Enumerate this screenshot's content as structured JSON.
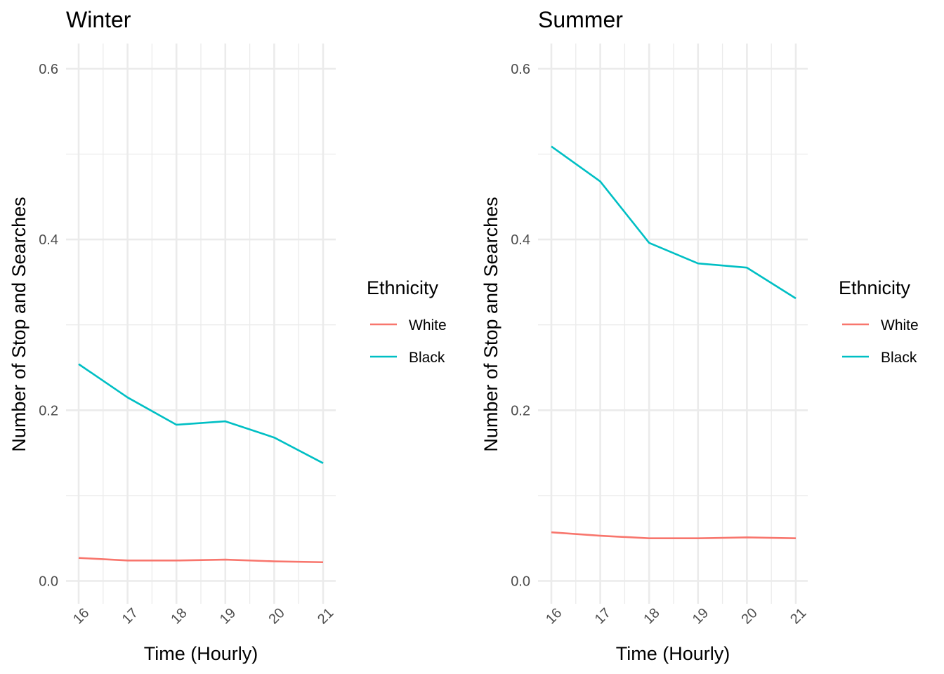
{
  "colors": {
    "White": "#F8766D",
    "Black": "#00BFC4"
  },
  "chart_data": [
    {
      "type": "line",
      "title": "Winter",
      "xlabel": "Time (Hourly)",
      "ylabel": "Number of Stop and Searches",
      "x": [
        16,
        17,
        18,
        19,
        20,
        21
      ],
      "xticks": [
        "16",
        "17",
        "18",
        "19",
        "20",
        "21"
      ],
      "yticks": [
        "0.0",
        "0.2",
        "0.4",
        "0.6"
      ],
      "ylim": [
        -0.03,
        0.63
      ],
      "grid": true,
      "legend": {
        "title": "Ethnicity",
        "position": "right"
      },
      "series": [
        {
          "name": "White",
          "values": [
            0.027,
            0.024,
            0.024,
            0.025,
            0.023,
            0.022
          ]
        },
        {
          "name": "Black",
          "values": [
            0.254,
            0.215,
            0.183,
            0.187,
            0.168,
            0.138
          ]
        }
      ]
    },
    {
      "type": "line",
      "title": "Summer",
      "xlabel": "Time (Hourly)",
      "ylabel": "Number of Stop and Searches",
      "x": [
        16,
        17,
        18,
        19,
        20,
        21
      ],
      "xticks": [
        "16",
        "17",
        "18",
        "19",
        "20",
        "21"
      ],
      "yticks": [
        "0.0",
        "0.2",
        "0.4",
        "0.6"
      ],
      "ylim": [
        -0.03,
        0.63
      ],
      "grid": true,
      "legend": {
        "title": "Ethnicity",
        "position": "right"
      },
      "series": [
        {
          "name": "White",
          "values": [
            0.057,
            0.053,
            0.05,
            0.05,
            0.051,
            0.05
          ]
        },
        {
          "name": "Black",
          "values": [
            0.509,
            0.468,
            0.396,
            0.372,
            0.367,
            0.331
          ]
        }
      ]
    }
  ]
}
